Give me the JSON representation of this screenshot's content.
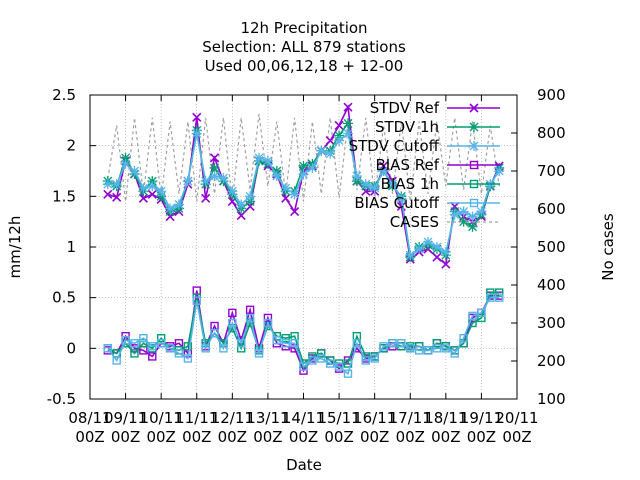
{
  "chart_data": {
    "type": "line",
    "title_lines": [
      "12h Precipitation",
      "Selection: ALL    879 stations",
      "Used  00,06,12,18 + 12-00"
    ],
    "xlabel": "Date",
    "ylabel": "mm/12h",
    "y2label": "No cases",
    "ylim": [
      -0.5,
      2.5
    ],
    "y2lim": [
      100,
      900
    ],
    "xlim": [
      0,
      12
    ],
    "grid": true,
    "legend_position": "top-right",
    "y_ticks": [
      "-0.5",
      "0",
      "0.5",
      "1",
      "1.5",
      "2",
      "2.5"
    ],
    "y_tick_values": [
      -0.5,
      0,
      0.5,
      1,
      1.5,
      2,
      2.5
    ],
    "y2_ticks": [
      "100",
      "200",
      "300",
      "400",
      "500",
      "600",
      "700",
      "800",
      "900"
    ],
    "y2_tick_values": [
      100,
      200,
      300,
      400,
      500,
      600,
      700,
      800,
      900
    ],
    "x_ticks": [
      {
        "l1": "08/11",
        "l2": "00Z"
      },
      {
        "l1": "09/11",
        "l2": "00Z"
      },
      {
        "l1": "10/11",
        "l2": "00Z"
      },
      {
        "l1": "11/11",
        "l2": "00Z"
      },
      {
        "l1": "12/11",
        "l2": "00Z"
      },
      {
        "l1": "13/11",
        "l2": "00Z"
      },
      {
        "l1": "14/11",
        "l2": "00Z"
      },
      {
        "l1": "15/11",
        "l2": "00Z"
      },
      {
        "l1": "16/11",
        "l2": "00Z"
      },
      {
        "l1": "17/11",
        "l2": "00Z"
      },
      {
        "l1": "18/11",
        "l2": "00Z"
      },
      {
        "l1": "19/11",
        "l2": "00Z"
      },
      {
        "l1": "20/11",
        "l2": "00Z"
      }
    ],
    "series": [
      {
        "name": "STDV Ref",
        "color": "#9400d3",
        "dash": "",
        "marker": "x",
        "axis": "y",
        "x": [
          0.5,
          0.75,
          1,
          1.25,
          1.5,
          1.75,
          2,
          2.25,
          2.5,
          2.75,
          3,
          3.25,
          3.5,
          3.75,
          4,
          4.25,
          4.5,
          4.75,
          5,
          5.25,
          5.5,
          5.75,
          6,
          6.25,
          6.5,
          6.75,
          7,
          7.25,
          7.5,
          7.75,
          8,
          8.25,
          8.5,
          8.75,
          9,
          9.25,
          9.5,
          9.75,
          10,
          10.25,
          10.5,
          10.75,
          11,
          11.25,
          11.5
        ],
        "values": [
          1.52,
          1.49,
          1.85,
          1.72,
          1.48,
          1.52,
          1.47,
          1.3,
          1.35,
          1.62,
          2.28,
          1.48,
          1.88,
          1.65,
          1.45,
          1.31,
          1.4,
          1.85,
          1.8,
          1.72,
          1.48,
          1.35,
          1.75,
          1.8,
          1.95,
          2.05,
          2.2,
          2.38,
          1.65,
          1.55,
          1.55,
          1.8,
          1.65,
          1.4,
          0.88,
          0.95,
          0.98,
          0.9,
          0.83,
          1.4,
          1.3,
          1.25,
          1.3,
          1.6,
          1.8
        ]
      },
      {
        "name": "STDV 1h",
        "color": "#009e73",
        "dash": "",
        "marker": "star",
        "axis": "y",
        "x": [
          0.5,
          0.75,
          1,
          1.25,
          1.5,
          1.75,
          2,
          2.25,
          2.5,
          2.75,
          3,
          3.25,
          3.5,
          3.75,
          4,
          4.25,
          4.5,
          4.75,
          5,
          5.25,
          5.5,
          5.75,
          6,
          6.25,
          6.5,
          6.75,
          7,
          7.25,
          7.5,
          7.75,
          8,
          8.25,
          8.5,
          8.75,
          9,
          9.25,
          9.5,
          9.75,
          10,
          10.25,
          10.5,
          10.75,
          11,
          11.25,
          11.5
        ],
        "values": [
          1.65,
          1.6,
          1.88,
          1.72,
          1.55,
          1.65,
          1.5,
          1.35,
          1.38,
          1.65,
          2.15,
          1.62,
          1.78,
          1.65,
          1.52,
          1.38,
          1.45,
          1.85,
          1.82,
          1.75,
          1.55,
          1.55,
          1.8,
          1.82,
          1.95,
          1.95,
          2.1,
          2.22,
          1.65,
          1.6,
          1.6,
          1.75,
          1.6,
          1.5,
          0.9,
          1.0,
          1.02,
          0.98,
          0.92,
          1.35,
          1.25,
          1.2,
          1.32,
          1.6,
          1.78
        ]
      },
      {
        "name": "STDV Cutoff",
        "color": "#56b4e9",
        "dash": "",
        "marker": "star",
        "axis": "y",
        "x": [
          0.5,
          0.75,
          1,
          1.25,
          1.5,
          1.75,
          2,
          2.25,
          2.5,
          2.75,
          3,
          3.25,
          3.5,
          3.75,
          4,
          4.25,
          4.5,
          4.75,
          5,
          5.25,
          5.5,
          5.75,
          6,
          6.25,
          6.5,
          6.75,
          7,
          7.25,
          7.5,
          7.75,
          8,
          8.25,
          8.5,
          8.75,
          9,
          9.25,
          9.5,
          9.75,
          10,
          10.25,
          10.5,
          10.75,
          11,
          11.25,
          11.5
        ],
        "values": [
          1.62,
          1.62,
          1.82,
          1.75,
          1.58,
          1.6,
          1.55,
          1.38,
          1.42,
          1.65,
          2.12,
          1.65,
          1.7,
          1.68,
          1.55,
          1.42,
          1.5,
          1.88,
          1.85,
          1.7,
          1.58,
          1.52,
          1.72,
          1.78,
          1.95,
          1.92,
          2.05,
          2.12,
          1.7,
          1.62,
          1.58,
          1.75,
          1.62,
          1.48,
          0.92,
          0.98,
          1.05,
          1.0,
          0.95,
          1.32,
          1.35,
          1.3,
          1.35,
          1.62,
          1.75
        ]
      },
      {
        "name": "BIAS Ref",
        "color": "#9400d3",
        "dash": "",
        "marker": "square",
        "axis": "y",
        "x": [
          0.5,
          0.75,
          1,
          1.25,
          1.5,
          1.75,
          2,
          2.25,
          2.5,
          2.75,
          3,
          3.25,
          3.5,
          3.75,
          4,
          4.25,
          4.5,
          4.75,
          5,
          5.25,
          5.5,
          5.75,
          6,
          6.25,
          6.5,
          6.75,
          7,
          7.25,
          7.5,
          7.75,
          8,
          8.25,
          8.5,
          8.75,
          9,
          9.25,
          9.5,
          9.75,
          10,
          10.25,
          10.5,
          10.75,
          11,
          11.25,
          11.5
        ],
        "values": [
          -0.02,
          -0.05,
          0.12,
          0.0,
          -0.02,
          -0.08,
          0.05,
          0.02,
          0.05,
          -0.05,
          0.57,
          0.02,
          0.22,
          0.05,
          0.35,
          0.08,
          0.38,
          0.0,
          0.3,
          0.05,
          0.02,
          0.0,
          -0.22,
          -0.1,
          -0.05,
          -0.12,
          -0.2,
          -0.12,
          0.0,
          -0.1,
          -0.08,
          0.0,
          0.02,
          0.02,
          0.0,
          0.02,
          -0.02,
          0.05,
          0.02,
          -0.02,
          0.05,
          0.3,
          0.35,
          0.52,
          0.52
        ]
      },
      {
        "name": "BIAS 1h",
        "color": "#009e73",
        "dash": "",
        "marker": "square",
        "axis": "y",
        "x": [
          0.5,
          0.75,
          1,
          1.25,
          1.5,
          1.75,
          2,
          2.25,
          2.5,
          2.75,
          3,
          3.25,
          3.5,
          3.75,
          4,
          4.25,
          4.5,
          4.75,
          5,
          5.25,
          5.5,
          5.75,
          6,
          6.25,
          6.5,
          6.75,
          7,
          7.25,
          7.5,
          7.75,
          8,
          8.25,
          8.5,
          8.75,
          9,
          9.25,
          9.5,
          9.75,
          10,
          10.25,
          10.5,
          10.75,
          11,
          11.25,
          11.5
        ],
        "values": [
          0.0,
          -0.05,
          0.05,
          -0.05,
          0.05,
          0.0,
          0.1,
          0.0,
          -0.02,
          0.02,
          0.5,
          0.05,
          0.15,
          0.05,
          0.2,
          0.0,
          0.25,
          -0.02,
          0.22,
          0.12,
          0.1,
          0.12,
          -0.15,
          -0.08,
          -0.05,
          -0.12,
          -0.15,
          -0.15,
          0.12,
          -0.08,
          -0.08,
          0.0,
          0.05,
          0.02,
          0.02,
          0.02,
          -0.02,
          0.05,
          0.02,
          -0.02,
          0.05,
          0.25,
          0.3,
          0.55,
          0.55
        ]
      },
      {
        "name": "BIAS Cutoff",
        "color": "#56b4e9",
        "dash": "",
        "marker": "square",
        "axis": "y",
        "x": [
          0.5,
          0.75,
          1,
          1.25,
          1.5,
          1.75,
          2,
          2.25,
          2.5,
          2.75,
          3,
          3.25,
          3.5,
          3.75,
          4,
          4.25,
          4.5,
          4.75,
          5,
          5.25,
          5.5,
          5.75,
          6,
          6.25,
          6.5,
          6.75,
          7,
          7.25,
          7.5,
          7.75,
          8,
          8.25,
          8.5,
          8.75,
          9,
          9.25,
          9.5,
          9.75,
          10,
          10.25,
          10.5,
          10.75,
          11,
          11.25,
          11.5
        ],
        "values": [
          0.0,
          -0.12,
          0.08,
          0.05,
          0.1,
          0.02,
          0.05,
          0.0,
          -0.05,
          -0.1,
          0.47,
          0.0,
          0.15,
          0.0,
          0.25,
          0.05,
          0.3,
          -0.05,
          0.25,
          0.08,
          0.05,
          0.05,
          -0.18,
          -0.12,
          -0.1,
          -0.15,
          -0.18,
          -0.25,
          0.05,
          -0.12,
          -0.1,
          0.02,
          0.05,
          0.05,
          0.0,
          -0.02,
          -0.02,
          0.0,
          0.0,
          -0.05,
          0.1,
          0.32,
          0.35,
          0.5,
          0.5
        ]
      },
      {
        "name": "CASES",
        "color": "#a0a0a0",
        "dash": "3,3",
        "marker": "none",
        "axis": "y2",
        "x": [
          0.5,
          0.75,
          1,
          1.25,
          1.5,
          1.75,
          2,
          2.25,
          2.5,
          2.75,
          3,
          3.25,
          3.5,
          3.75,
          4,
          4.25,
          4.5,
          4.75,
          5,
          5.25,
          5.5,
          5.75,
          6,
          6.25,
          6.5,
          6.75,
          7,
          7.25,
          7.5,
          7.75,
          8,
          8.25,
          8.5,
          8.75,
          9,
          9.25,
          9.5,
          9.75,
          10,
          10.25,
          10.5,
          10.75,
          11,
          11.25,
          11.5
        ],
        "values": [
          680,
          820,
          620,
          840,
          640,
          840,
          630,
          830,
          640,
          830,
          620,
          840,
          640,
          840,
          620,
          840,
          650,
          850,
          660,
          830,
          640,
          840,
          620,
          830,
          640,
          840,
          630,
          830,
          650,
          840,
          630,
          820,
          640,
          830,
          620,
          830,
          640,
          830,
          660,
          840,
          650,
          830,
          640,
          820,
          660
        ]
      }
    ]
  }
}
